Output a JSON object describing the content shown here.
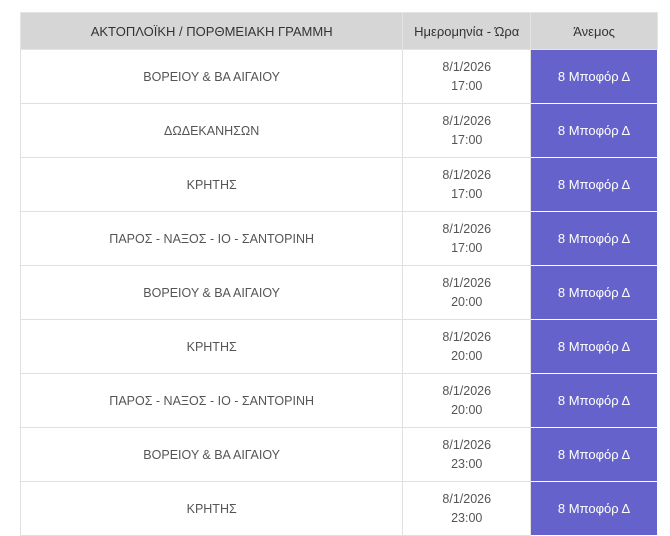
{
  "table": {
    "headers": [
      "ΑΚΤΟΠΛΟΪΚΗ / ΠΟΡΘΜΕΙΑΚΗ ΓΡΑΜΜΗ",
      "Ημερομηνία - Ώρα",
      "Άνεμος"
    ],
    "accent_color": "#6563cb",
    "rows": [
      {
        "line": "ΒΟΡΕΙΟΥ & ΒΑ ΑΙΓΑΙΟΥ",
        "date": "8/1/2026",
        "time": "17:00",
        "wind": "8 Μποφόρ Δ"
      },
      {
        "line": "ΔΩΔΕΚΑΝΗΣΩΝ",
        "date": "8/1/2026",
        "time": "17:00",
        "wind": "8 Μποφόρ Δ"
      },
      {
        "line": "ΚΡΗΤΗΣ",
        "date": "8/1/2026",
        "time": "17:00",
        "wind": "8 Μποφόρ Δ"
      },
      {
        "line": "ΠΑΡΟΣ - ΝΑΞΟΣ - ΙΟ - ΣΑΝΤΟΡΙΝΗ",
        "date": "8/1/2026",
        "time": "17:00",
        "wind": "8 Μποφόρ Δ"
      },
      {
        "line": "ΒΟΡΕΙΟΥ & ΒΑ ΑΙΓΑΙΟΥ",
        "date": "8/1/2026",
        "time": "20:00",
        "wind": "8 Μποφόρ Δ"
      },
      {
        "line": "ΚΡΗΤΗΣ",
        "date": "8/1/2026",
        "time": "20:00",
        "wind": "8 Μποφόρ Δ"
      },
      {
        "line": "ΠΑΡΟΣ - ΝΑΞΟΣ - ΙΟ - ΣΑΝΤΟΡΙΝΗ",
        "date": "8/1/2026",
        "time": "20:00",
        "wind": "8 Μποφόρ Δ"
      },
      {
        "line": "ΒΟΡΕΙΟΥ & ΒΑ ΑΙΓΑΙΟΥ",
        "date": "8/1/2026",
        "time": "23:00",
        "wind": "8 Μποφόρ Δ"
      },
      {
        "line": "ΚΡΗΤΗΣ",
        "date": "8/1/2026",
        "time": "23:00",
        "wind": "8 Μποφόρ Δ"
      }
    ]
  }
}
